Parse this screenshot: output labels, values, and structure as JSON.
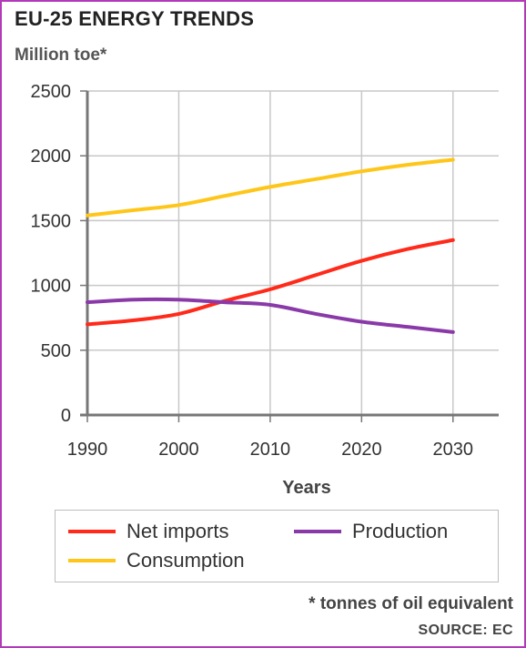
{
  "header": {
    "title": "EU-25 ENERGY TRENDS",
    "unit_label": "Million toe*"
  },
  "chart_data": {
    "type": "line",
    "title": "EU-25 ENERGY TRENDS",
    "ylabel": "Million toe*",
    "xlabel": "Years",
    "xlim": [
      1990,
      2035
    ],
    "ylim": [
      0,
      2500
    ],
    "x_ticks": [
      1990,
      2000,
      2010,
      2020,
      2030
    ],
    "y_ticks": [
      0,
      500,
      1000,
      1500,
      2000,
      2500
    ],
    "grid": true,
    "legend_position": "bottom",
    "series": [
      {
        "name": "Net imports",
        "color": "#ff2a1a",
        "x": [
          1990,
          1995,
          2000,
          2005,
          2010,
          2015,
          2020,
          2025,
          2030
        ],
        "y": [
          700,
          730,
          780,
          880,
          970,
          1080,
          1190,
          1280,
          1350
        ]
      },
      {
        "name": "Production",
        "color": "#8a3aa8",
        "x": [
          1990,
          1995,
          2000,
          2005,
          2010,
          2015,
          2020,
          2025,
          2030
        ],
        "y": [
          870,
          890,
          890,
          870,
          850,
          780,
          720,
          680,
          640
        ]
      },
      {
        "name": "Consumption",
        "color": "#ffc61a",
        "x": [
          1990,
          1995,
          2000,
          2005,
          2010,
          2015,
          2020,
          2025,
          2030
        ],
        "y": [
          1540,
          1580,
          1620,
          1690,
          1760,
          1820,
          1880,
          1930,
          1970
        ]
      }
    ]
  },
  "footer": {
    "footnote": "* tonnes of oil equivalent",
    "source": "SOURCE: EC"
  }
}
